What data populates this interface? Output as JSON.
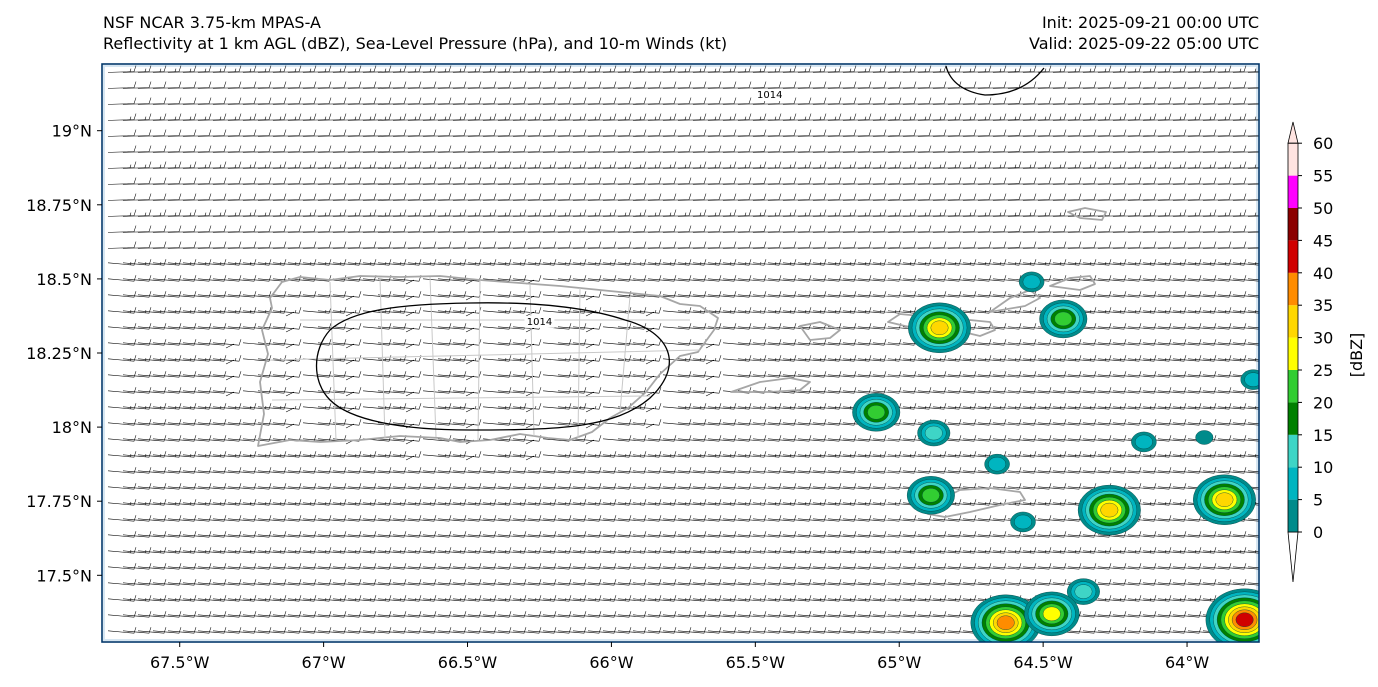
{
  "title": {
    "left_line1": "NSF NCAR 3.75-km MPAS-A",
    "left_line2": "Reflectivity at 1 km AGL (dBZ), Sea-Level Pressure (hPa), and 10-m Winds (kt)",
    "right_line1": "Init: 2025-09-21 00:00 UTC",
    "right_line2": "Valid: 2025-09-22 05:00 UTC"
  },
  "map": {
    "extent": {
      "lon_min": -67.77,
      "lon_max": -63.75,
      "lat_min": 17.275,
      "lat_max": 19.225
    },
    "lon_ticks": [
      {
        "value": -67.5,
        "label": "67.5°W"
      },
      {
        "value": -67.0,
        "label": "67°W"
      },
      {
        "value": -66.5,
        "label": "66.5°W"
      },
      {
        "value": -66.0,
        "label": "66°W"
      },
      {
        "value": -65.5,
        "label": "65.5°W"
      },
      {
        "value": -65.0,
        "label": "65°W"
      },
      {
        "value": -64.5,
        "label": "64.5°W"
      },
      {
        "value": -64.0,
        "label": "64°W"
      }
    ],
    "lat_ticks": [
      {
        "value": 19.0,
        "label": "19°N"
      },
      {
        "value": 18.75,
        "label": "18.75°N"
      },
      {
        "value": 18.5,
        "label": "18.5°N"
      },
      {
        "value": 18.25,
        "label": "18.25°N"
      },
      {
        "value": 18.0,
        "label": "18°N"
      },
      {
        "value": 17.75,
        "label": "17.75°N"
      },
      {
        "value": 17.5,
        "label": "17.5°N"
      }
    ],
    "isobar_labels": [
      {
        "value": "1014",
        "lon": -65.45,
        "lat": 19.11
      },
      {
        "value": "1014",
        "lon": -66.25,
        "lat": 18.345
      }
    ],
    "reflectivity_cells": [
      {
        "lon": -64.86,
        "lat": 18.335,
        "dbz": 35
      },
      {
        "lon": -64.43,
        "lat": 18.365,
        "dbz": 25
      },
      {
        "lon": -64.54,
        "lat": 18.49,
        "dbz": 10
      },
      {
        "lon": -65.08,
        "lat": 18.05,
        "dbz": 25
      },
      {
        "lon": -64.88,
        "lat": 17.98,
        "dbz": 15
      },
      {
        "lon": -64.89,
        "lat": 17.77,
        "dbz": 25
      },
      {
        "lon": -64.66,
        "lat": 17.875,
        "dbz": 10
      },
      {
        "lon": -64.57,
        "lat": 17.68,
        "dbz": 10
      },
      {
        "lon": -64.27,
        "lat": 17.72,
        "dbz": 35
      },
      {
        "lon": -64.15,
        "lat": 17.95,
        "dbz": 10
      },
      {
        "lon": -63.87,
        "lat": 17.755,
        "dbz": 35
      },
      {
        "lon": -63.94,
        "lat": 17.965,
        "dbz": 5
      },
      {
        "lon": -64.36,
        "lat": 17.445,
        "dbz": 15
      },
      {
        "lon": -64.63,
        "lat": 17.34,
        "dbz": 40
      },
      {
        "lon": -64.47,
        "lat": 17.37,
        "dbz": 30
      },
      {
        "lon": -63.8,
        "lat": 17.35,
        "dbz": 45
      },
      {
        "lon": -63.77,
        "lat": 18.16,
        "dbz": 10
      }
    ]
  },
  "colorbar": {
    "unit_label": "[dBZ]",
    "levels": [
      "0",
      "5",
      "10",
      "15",
      "20",
      "25",
      "30",
      "35",
      "40",
      "45",
      "50",
      "55",
      "60"
    ],
    "colors": [
      "#00FFFF",
      "#008B8B",
      "#00B5C0",
      "#3ED5C6",
      "#008000",
      "#32CD32",
      "#FFFF00",
      "#FFD700",
      "#FF8C00",
      "#D00000",
      "#8B0000",
      "#FF00FF",
      "#FFE4E1"
    ]
  },
  "colors": {
    "frame": "#003366",
    "coastline": "#A6A6A6",
    "isobar": "#000000",
    "barb": "#000000",
    "sea_edge": "#D6E6F2"
  }
}
